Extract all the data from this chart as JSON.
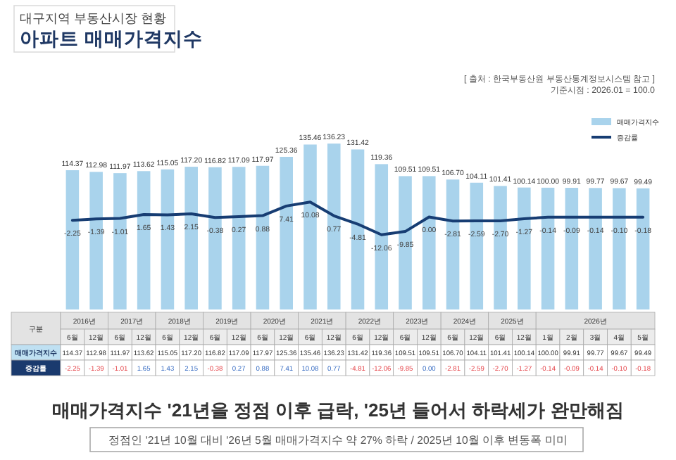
{
  "chart_data": {
    "type": "bar",
    "title": "아파트 매매가격지수",
    "subtitle": "대구지역 부동산시장 현황",
    "categories": [
      "6월",
      "12월",
      "6월",
      "12월",
      "6월",
      "12월",
      "6월",
      "12월",
      "6월",
      "12월",
      "6월",
      "12월",
      "6월",
      "12월",
      "6월",
      "12월",
      "6월",
      "12월",
      "6월",
      "12월",
      "1월",
      "2월",
      "3월",
      "4월",
      "5월"
    ],
    "series": [
      {
        "name": "매매가격지수",
        "color": "#a9d3ec",
        "values": [
          114.37,
          112.98,
          111.97,
          113.62,
          115.05,
          117.2,
          116.82,
          117.09,
          117.97,
          125.36,
          135.46,
          136.23,
          131.42,
          119.36,
          109.51,
          109.51,
          106.7,
          104.11,
          101.41,
          100.14,
          100.0,
          99.91,
          99.77,
          99.67,
          99.49
        ],
        "value_labels": [
          "114.37",
          "112.98",
          "111.97",
          "113.62",
          "115.05",
          "117.20",
          "116.82",
          "117.09",
          "117.97",
          "125.36",
          "135.46",
          "136.23",
          "131.42",
          "119.36",
          "109.51",
          "109.51",
          "106.70",
          "104.11",
          "101.41",
          "100.14",
          "100.00",
          "99.91",
          "99.77",
          "99.67",
          "99.49"
        ]
      },
      {
        "name": "증감률",
        "type": "line",
        "axis": "y2",
        "color": "#173d73",
        "values": [
          -2.25,
          -1.39,
          -1.01,
          1.65,
          1.43,
          2.15,
          -0.38,
          0.27,
          0.88,
          7.41,
          10.08,
          0.77,
          -4.81,
          -12.06,
          -9.85,
          0.0,
          -2.81,
          -2.59,
          -2.7,
          -1.27,
          -0.14,
          -0.09,
          -0.14,
          -0.1,
          -0.18
        ],
        "value_labels": [
          "-2.25",
          "-1.39",
          "-1.01",
          "1.65",
          "1.43",
          "2.15",
          "-0.38",
          "0.27",
          "0.88",
          "7.41",
          "10.08",
          "0.77",
          "-4.81",
          "-12.06",
          "-9.85",
          "0.00",
          "-2.81",
          "-2.59",
          "-2.70",
          "-1.27",
          "-0.14",
          "-0.09",
          "-0.14",
          "-0.10",
          "-0.18"
        ]
      }
    ],
    "data_labels": true,
    "legend": "top right",
    "annotations": [
      "[ 출처 : 한국부동산원 부동산통계정보시스템 참고 ]",
      "기준시점 : 2026.01 = 100.0",
      "매매가격지수 '21년을 정점 이후 급락, '25년 들어서 하락세가 완만해짐",
      "정점인 '21년 10월 대비 '26년 5월 매매가격지수 약 27% 하락 / 2025년 10월 이후 변동폭 미미",
      "구분",
      "2016년",
      "2017년",
      "2018년",
      "2019년",
      "2020년",
      "2021년",
      "2022년",
      "2023년",
      "2024년",
      "2025년",
      "2026년"
    ]
  }
}
